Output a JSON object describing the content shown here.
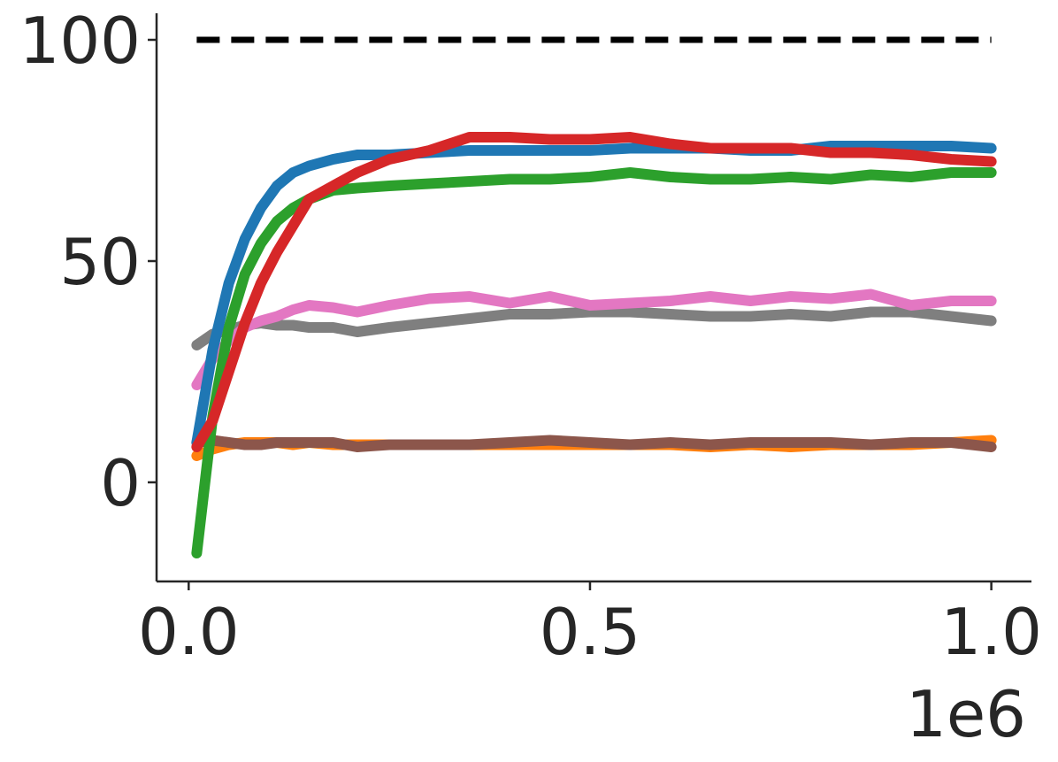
{
  "chart_data": {
    "type": "line",
    "x": [
      0.01,
      0.03,
      0.05,
      0.07,
      0.09,
      0.11,
      0.13,
      0.15,
      0.18,
      0.21,
      0.25,
      0.3,
      0.35,
      0.4,
      0.45,
      0.5,
      0.55,
      0.6,
      0.65,
      0.7,
      0.75,
      0.8,
      0.85,
      0.9,
      0.95,
      1.0
    ],
    "series": [
      {
        "color": "#ff7f0e",
        "values": [
          6,
          7.5,
          8.5,
          9,
          9,
          9,
          8.5,
          9,
          8.5,
          8.5,
          8.5,
          8.5,
          8.5,
          8.5,
          8.5,
          8.5,
          8.5,
          8.5,
          8,
          8.5,
          8,
          8.5,
          8.5,
          8.5,
          9,
          9.5
        ]
      },
      {
        "color": "#8c564b",
        "values": [
          9,
          9.5,
          9,
          8.5,
          8.5,
          9,
          9,
          9,
          9,
          8,
          8.5,
          8.5,
          8.5,
          9,
          9.5,
          9,
          8.5,
          9,
          8.5,
          9,
          9,
          9,
          8.5,
          9,
          9,
          8
        ]
      },
      {
        "color": "#7f7f7f",
        "values": [
          31,
          33.5,
          34.5,
          35.5,
          36,
          35.5,
          35.5,
          35,
          35,
          34,
          35,
          36,
          37,
          38,
          38,
          38.5,
          38.5,
          38,
          37.5,
          37.5,
          38,
          37.5,
          38.5,
          38.5,
          37.5,
          36.5
        ]
      },
      {
        "color": "#e377c2",
        "values": [
          22,
          28,
          32,
          35,
          36.5,
          37.5,
          39,
          40,
          39.5,
          38.5,
          40,
          41.5,
          42,
          40.5,
          42,
          40,
          40.5,
          41,
          42,
          41,
          42,
          41.5,
          42.5,
          40,
          41,
          41
        ]
      },
      {
        "color": "#2ca02c",
        "values": [
          -16,
          15,
          35,
          47,
          54,
          59,
          62,
          64,
          66,
          66.5,
          67,
          67.5,
          68,
          68.5,
          68.5,
          69,
          70,
          69,
          68.5,
          68.5,
          69,
          68.5,
          69.5,
          69,
          70,
          70
        ]
      },
      {
        "color": "#1f77b4",
        "values": [
          9,
          30,
          45,
          55,
          62,
          67,
          70,
          71.5,
          73,
          74,
          74,
          74.5,
          75,
          75,
          75,
          75,
          75.5,
          75.5,
          75.5,
          75,
          75,
          76,
          76,
          76,
          76,
          75.5
        ]
      },
      {
        "color": "#d62728",
        "values": [
          8,
          14,
          25,
          36,
          45,
          52,
          58,
          64,
          67,
          70,
          73,
          75,
          78,
          78,
          77.5,
          77.5,
          78,
          76.5,
          75.5,
          75.5,
          75.5,
          74.5,
          74.5,
          74,
          73,
          72.5
        ]
      }
    ],
    "reference_line": {
      "value": 100,
      "x": [
        0.01,
        1.0
      ],
      "color": "#000000",
      "style": "dashed"
    },
    "xlim": [
      -0.04,
      1.05
    ],
    "xticks": [
      {
        "value": 0,
        "label": "0.0"
      },
      {
        "value": 0.5,
        "label": "0.5"
      },
      {
        "value": 1,
        "label": "1.0"
      }
    ],
    "x_offset_label": "1e6",
    "ylim": [
      -22.4,
      106
    ],
    "yticks": [
      0,
      50,
      100
    ],
    "grid": false
  }
}
